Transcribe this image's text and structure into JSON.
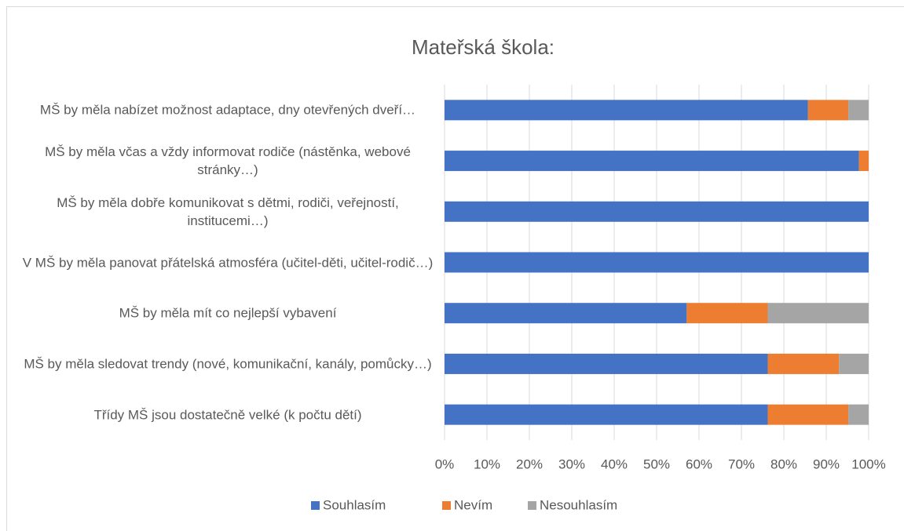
{
  "chart_data": {
    "type": "stacked_barh",
    "title": "Mateřská škola:",
    "categories": [
      "MŠ by měla nabízet možnost adaptace, dny otevřených dveří…",
      "MŠ by měla včas a vždy informovat rodiče (nástěnka, webové stránky…)",
      "MŠ by měla dobře komunikovat s dětmi, rodiči, veřejností, institucemi…)",
      "V MŠ by měla panovat přátelská atmosféra (učitel-děti, učitel-rodič…)",
      "MŠ by měla mít co nejlepší vybavení",
      "MŠ by měla sledovat trendy (nové, komunikační, kanály, pomůcky…)",
      "Třídy MŠ jsou dostatečně velké (k počtu dětí)"
    ],
    "series": [
      {
        "name": "Souhlasím",
        "color": "#4472c4",
        "values": [
          85.7,
          97.7,
          100,
          100,
          57.1,
          76.2,
          76.2
        ]
      },
      {
        "name": "Nevím",
        "color": "#ed7d31",
        "values": [
          9.5,
          2.3,
          0,
          0,
          19.1,
          16.8,
          19.0
        ]
      },
      {
        "name": "Nesouhlasím",
        "color": "#a5a5a5",
        "values": [
          4.8,
          0,
          0,
          0,
          23.8,
          7.0,
          4.8
        ]
      }
    ],
    "xlim": [
      0,
      100
    ],
    "xticks": [
      {
        "value": 0,
        "label": "0%"
      },
      {
        "value": 10,
        "label": "10%"
      },
      {
        "value": 20,
        "label": "20%"
      },
      {
        "value": 30,
        "label": "30%"
      },
      {
        "value": 40,
        "label": "40%"
      },
      {
        "value": 50,
        "label": "50%"
      },
      {
        "value": 60,
        "label": "60%"
      },
      {
        "value": 70,
        "label": "70%"
      },
      {
        "value": 80,
        "label": "80%"
      },
      {
        "value": 90,
        "label": "90%"
      },
      {
        "value": 100,
        "label": "100%"
      }
    ],
    "grid": true,
    "legend": "bottom"
  }
}
